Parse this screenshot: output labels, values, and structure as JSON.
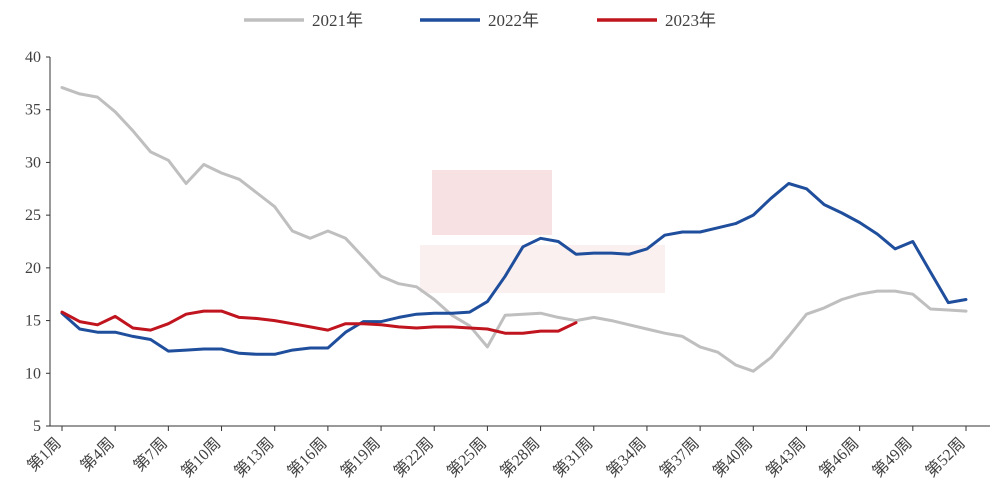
{
  "chart_data": {
    "type": "line",
    "title": "",
    "xlabel": "",
    "ylabel": "",
    "ylim": [
      5,
      40
    ],
    "yticks": [
      "5",
      "10",
      "15",
      "20",
      "25",
      "30",
      "35",
      "40"
    ],
    "x_tick_labels": [
      "第1周",
      "第4周",
      "第7周",
      "第10周",
      "第13周",
      "第16周",
      "第19周",
      "第22周",
      "第25周",
      "第28周",
      "第31周",
      "第34周",
      "第37周",
      "第40周",
      "第43周",
      "第46周",
      "第49周",
      "第52周"
    ],
    "grid": false,
    "legend_position": "top",
    "series": [
      {
        "name": "2021年",
        "color": "#BFBFBF",
        "values": [
          37.1,
          36.5,
          36.2,
          34.8,
          33.0,
          31.0,
          30.2,
          28.0,
          29.8,
          29.0,
          28.4,
          27.1,
          25.8,
          23.5,
          22.8,
          23.5,
          22.8,
          21.0,
          19.2,
          18.5,
          18.2,
          17.0,
          15.5,
          14.5,
          12.5,
          15.5,
          15.6,
          15.7,
          15.3,
          15.0,
          15.3,
          15.0,
          14.6,
          14.2,
          13.8,
          13.5,
          12.5,
          12.0,
          10.8,
          10.2,
          11.5,
          13.5,
          15.6,
          16.2,
          17.0,
          17.5,
          17.8,
          17.8,
          17.5,
          16.1,
          16.0,
          15.9
        ]
      },
      {
        "name": "2022年",
        "color": "#1F4E9C",
        "values": [
          15.7,
          14.2,
          13.9,
          13.9,
          13.5,
          13.2,
          12.1,
          12.2,
          12.3,
          12.3,
          11.9,
          11.8,
          11.8,
          12.2,
          12.4,
          12.4,
          13.9,
          14.9,
          14.9,
          15.3,
          15.6,
          15.7,
          15.7,
          15.8,
          16.8,
          19.2,
          22.0,
          22.8,
          22.5,
          21.3,
          21.4,
          21.4,
          21.3,
          21.8,
          23.1,
          23.4,
          23.4,
          23.8,
          24.2,
          25.0,
          26.6,
          28.0,
          27.5,
          26.0,
          25.2,
          24.3,
          23.2,
          21.8,
          22.5,
          19.6,
          16.7,
          17.0
        ]
      },
      {
        "name": "2023年",
        "color": "#C0141E",
        "values": [
          15.8,
          14.9,
          14.6,
          15.4,
          14.3,
          14.1,
          14.7,
          15.6,
          15.9,
          15.9,
          15.3,
          15.2,
          15.0,
          14.7,
          14.4,
          14.1,
          14.7,
          14.7,
          14.6,
          14.4,
          14.3,
          14.4,
          14.4,
          14.3,
          14.2,
          13.8,
          13.8,
          14.0,
          14.0,
          14.8
        ]
      }
    ]
  }
}
